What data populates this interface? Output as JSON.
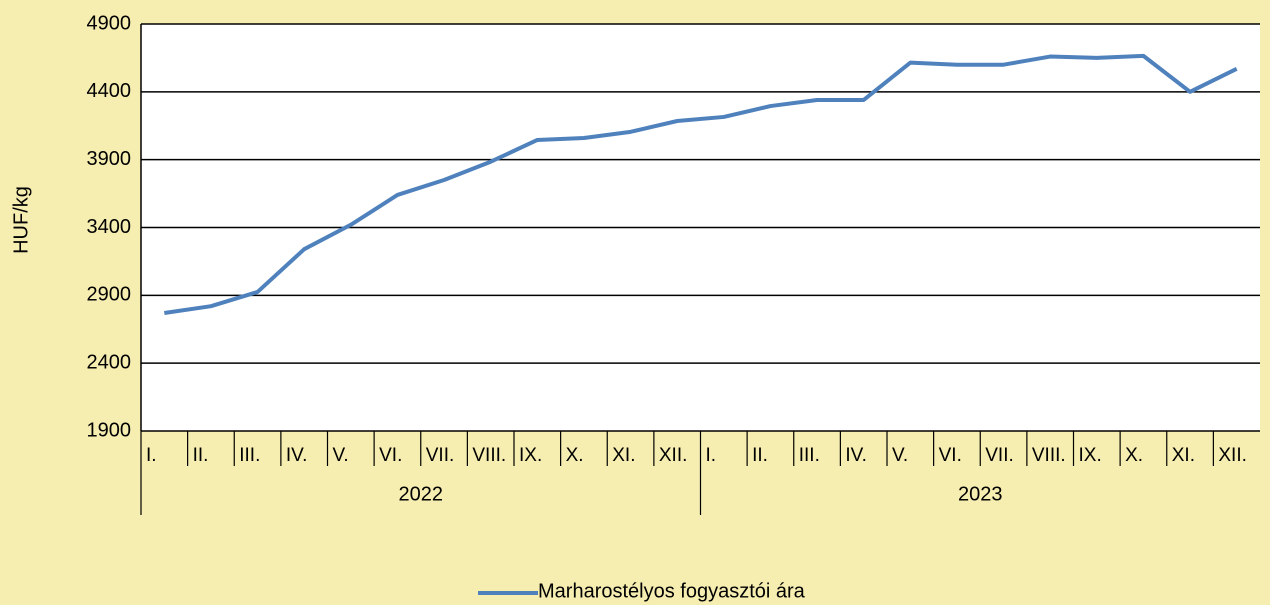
{
  "chart_data": {
    "type": "line",
    "y_label": "HUF/kg",
    "categories": [
      "I.",
      "II.",
      "III.",
      "IV.",
      "V.",
      "VI.",
      "VII.",
      "VIII.",
      "IX.",
      "X.",
      "XI.",
      "XII.",
      "I.",
      "II.",
      "III.",
      "IV.",
      "V.",
      "VI.",
      "VII.",
      "VIII.",
      "IX.",
      "X.",
      "XI.",
      "XII."
    ],
    "groups": [
      "2022",
      "2023"
    ],
    "series": [
      {
        "name": "Marharostélyos fogyasztói ára",
        "color": "#4f81bd",
        "values": [
          2770,
          2820,
          2925,
          3240,
          3420,
          3640,
          3750,
          3885,
          4045,
          4060,
          4105,
          4185,
          4215,
          4295,
          4340,
          4340,
          4615,
          4600,
          4600,
          4660,
          4650,
          4665,
          4400,
          4570
        ]
      }
    ],
    "ylim": [
      1900,
      4900
    ],
    "yticks": [
      1900,
      2400,
      2900,
      3400,
      3900,
      4400,
      4900
    ],
    "grid": true,
    "legend": "bottom"
  }
}
